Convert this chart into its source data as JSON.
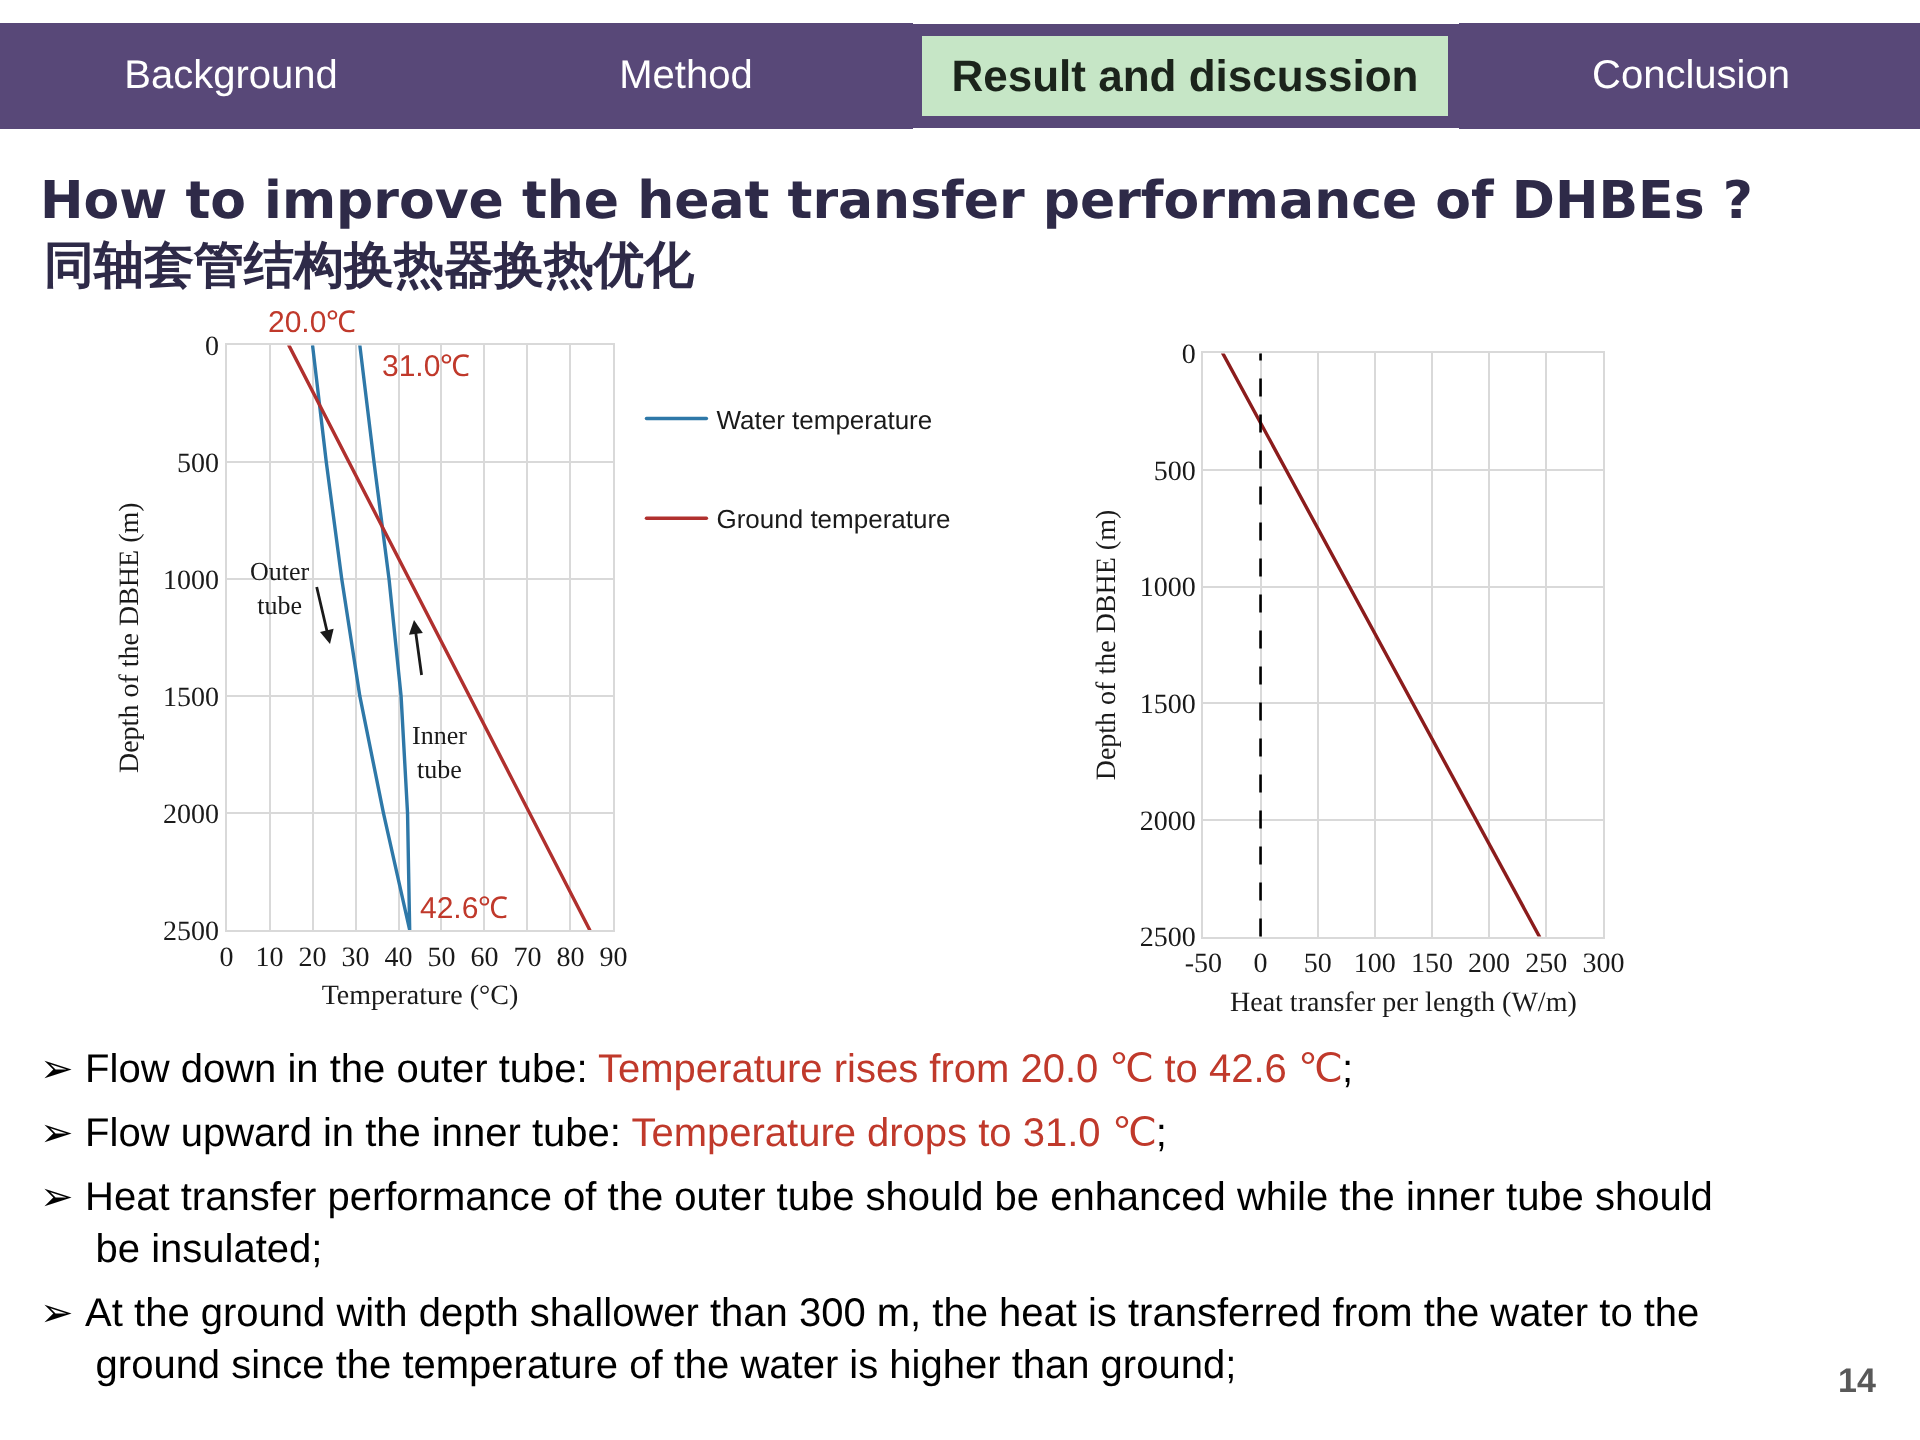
{
  "chart_data": [
    {
      "type": "other",
      "title": "How to improve the heat transfer performance of DHBEs ?",
      "subtitle": "同轴套管结构换热器换热优化",
      "annotations": [
        "Background",
        "Method",
        "Result and discussion",
        "Conclusion"
      ]
    },
    {
      "type": "line",
      "xlabel": "Temperature (°C)",
      "ylabel": "Depth of the DBHE (m)",
      "xlim": [
        0,
        90
      ],
      "xticks": [
        0,
        10,
        20,
        30,
        40,
        50,
        60,
        70,
        80,
        90
      ],
      "ylim": [
        2500,
        0
      ],
      "yticks": [
        0,
        500,
        1000,
        1500,
        2000,
        2500
      ],
      "grid": true,
      "legend": "top right",
      "series": [
        {
          "name": "Water temperature",
          "color": "#2e78a8",
          "x": [
            20,
            23.2,
            26.8,
            31,
            36.5,
            42.6,
            42.1,
            40.6,
            37.8,
            34.3,
            31
          ],
          "values": [
            0,
            500,
            1000,
            1500,
            2000,
            2500,
            2000,
            1500,
            1000,
            500,
            0
          ]
        },
        {
          "name": "Ground temperature",
          "color": "#b0302e",
          "x": [
            14.5,
            84.5
          ],
          "values": [
            0,
            2500
          ]
        }
      ],
      "annotations": [
        {
          "text": "20.0℃",
          "x": 20,
          "y": 0
        },
        {
          "text": "31.0℃",
          "x": 31,
          "y": 0
        },
        {
          "text": "42.6℃",
          "x": 42.6,
          "y": 2500
        },
        "Outer tube",
        "Inner tube"
      ]
    },
    {
      "type": "line",
      "xlabel": "Heat transfer per length (W/m)",
      "ylabel": "Depth of the DBHE (m)",
      "xlim": [
        -50,
        300
      ],
      "xticks": [
        -50,
        0,
        50,
        100,
        150,
        200,
        250,
        300
      ],
      "ylim": [
        2500,
        0
      ],
      "yticks": [
        0,
        500,
        1000,
        1500,
        2000,
        2500
      ],
      "grid": true,
      "series": [
        {
          "color": "#8b1c1c",
          "x": [
            -33,
            244
          ],
          "values": [
            0,
            2500
          ]
        }
      ],
      "ref_lines": [
        {
          "axis": "x",
          "value": 0,
          "color": "#000000",
          "line_style": "dashed"
        }
      ]
    },
    {
      "type": "other",
      "annotations": [
        "➢ Flow down in the outer tube: Temperature rises from 20.0 ℃ to 42.6 ℃;",
        "➢ Flow upward in the inner tube: Temperature drops to 31.0 ℃;",
        "➢ Heat transfer performance of the outer tube should be enhanced while the inner tube should be insulated;",
        "➢ At the ground with depth shallower than 300 m, the heat is transferred from the water to the ground since the temperature of the water is higher than ground;",
        "14"
      ]
    }
  ]
}
